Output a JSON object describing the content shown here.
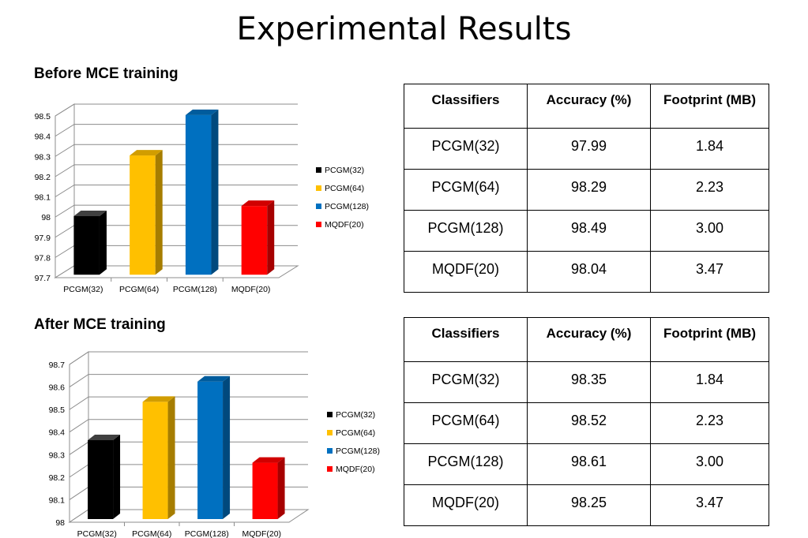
{
  "slide": {
    "title": "Experimental Results"
  },
  "sections": [
    {
      "heading": "Before MCE training"
    },
    {
      "heading": "After MCE training"
    }
  ],
  "tables": [
    {
      "headers": [
        "Classifiers",
        "Accuracy (%)",
        "Footprint (MB)"
      ],
      "rows": [
        [
          "PCGM(32)",
          "97.99",
          "1.84"
        ],
        [
          "PCGM(64)",
          "98.29",
          "2.23"
        ],
        [
          "PCGM(128)",
          "98.49",
          "3.00"
        ],
        [
          "MQDF(20)",
          "98.04",
          "3.47"
        ]
      ]
    },
    {
      "headers": [
        "Classifiers",
        "Accuracy (%)",
        "Footprint (MB)"
      ],
      "rows": [
        [
          "PCGM(32)",
          "98.35",
          "1.84"
        ],
        [
          "PCGM(64)",
          "98.52",
          "2.23"
        ],
        [
          "PCGM(128)",
          "98.61",
          "3.00"
        ],
        [
          "MQDF(20)",
          "98.25",
          "3.47"
        ]
      ]
    }
  ],
  "chart_data": [
    {
      "type": "bar",
      "categories": [
        "PCGM(32)",
        "PCGM(64)",
        "PCGM(128)",
        "MQDF(20)"
      ],
      "values": [
        97.99,
        98.29,
        98.49,
        98.04
      ],
      "colors": [
        "#000000",
        "#FFC000",
        "#0070C0",
        "#FF0000"
      ],
      "ylim": [
        97.7,
        98.5
      ],
      "yticks": [
        "97.7",
        "97.8",
        "97.9",
        "98",
        "98.1",
        "98.2",
        "98.3",
        "98.4",
        "98.5"
      ],
      "legend": [
        "PCGM(32)",
        "PCGM(64)",
        "PCGM(128)",
        "MQDF(20)"
      ],
      "legend_position": "right",
      "grid": true,
      "style": "3d"
    },
    {
      "type": "bar",
      "categories": [
        "PCGM(32)",
        "PCGM(64)",
        "PCGM(128)",
        "MQDF(20)"
      ],
      "values": [
        98.35,
        98.52,
        98.61,
        98.25
      ],
      "colors": [
        "#000000",
        "#FFC000",
        "#0070C0",
        "#FF0000"
      ],
      "ylim": [
        98.0,
        98.7
      ],
      "yticks": [
        "98",
        "98.1",
        "98.2",
        "98.3",
        "98.4",
        "98.5",
        "98.6",
        "98.7"
      ],
      "legend": [
        "PCGM(32)",
        "PCGM(64)",
        "PCGM(128)",
        "MQDF(20)"
      ],
      "legend_position": "right",
      "grid": true,
      "style": "3d"
    }
  ]
}
